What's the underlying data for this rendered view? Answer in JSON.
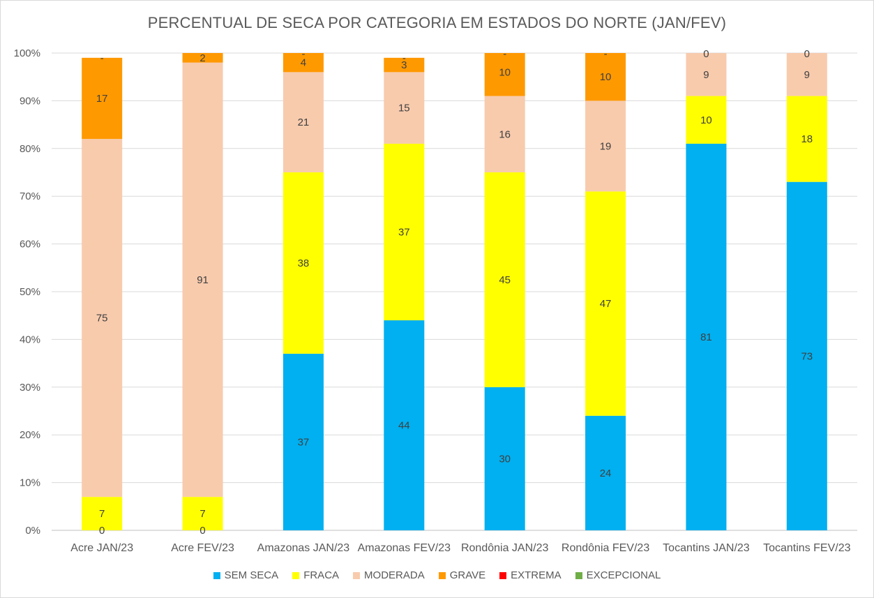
{
  "chart_data": {
    "type": "bar",
    "stacked": true,
    "title": "PERCENTUAL DE SECA POR CATEGORIA EM ESTADOS DO NORTE (JAN/FEV)",
    "xlabel": "",
    "ylabel": "",
    "ylim": [
      0,
      100
    ],
    "yticks": [
      "0%",
      "10%",
      "20%",
      "30%",
      "40%",
      "50%",
      "60%",
      "70%",
      "80%",
      "90%",
      "100%"
    ],
    "grid": true,
    "legend_position": "bottom",
    "categories": [
      "Acre JAN/23",
      "Acre FEV/23",
      "Amazonas JAN/23",
      "Amazonas FEV/23",
      "Rondônia JAN/23",
      "Rondônia FEV/23",
      "Tocantins JAN/23",
      "Tocantins FEV/23"
    ],
    "series": [
      {
        "name": "SEM SECA",
        "color": "#00b0f0",
        "values": [
          0,
          0,
          37,
          44,
          30,
          24,
          81,
          73
        ],
        "labels": [
          "0",
          "0",
          "37",
          "44",
          "30",
          "24",
          "81",
          "73"
        ]
      },
      {
        "name": "FRACA",
        "color": "#ffff00",
        "values": [
          7,
          7,
          38,
          37,
          45,
          47,
          10,
          18
        ],
        "labels": [
          "7",
          "7",
          "38",
          "37",
          "45",
          "47",
          "10",
          "18"
        ]
      },
      {
        "name": "MODERADA",
        "color": "#f8cbad",
        "values": [
          75,
          91,
          21,
          15,
          16,
          19,
          9,
          9
        ],
        "labels": [
          "75",
          "91",
          "21",
          "15",
          "16",
          "19",
          "9",
          "9"
        ]
      },
      {
        "name": "GRAVE",
        "color": "#ff9900",
        "values": [
          17,
          2,
          4,
          3,
          10,
          10,
          0,
          0
        ],
        "labels": [
          "17",
          "2",
          "4",
          "3",
          "10",
          "10",
          "0",
          "0"
        ]
      },
      {
        "name": "EXTREMA",
        "color": "#ff0000",
        "values": [
          0,
          0,
          0,
          0,
          0,
          0,
          0,
          0
        ],
        "labels": [
          "-",
          "",
          "-",
          "-",
          "-",
          "-",
          "",
          ""
        ]
      },
      {
        "name": "EXCEPCIONAL",
        "color": "#70ad47",
        "values": [
          0,
          0,
          0,
          0,
          0,
          0,
          0,
          0
        ],
        "labels": [
          "",
          "",
          "",
          "",
          "",
          "",
          "",
          ""
        ]
      }
    ]
  }
}
